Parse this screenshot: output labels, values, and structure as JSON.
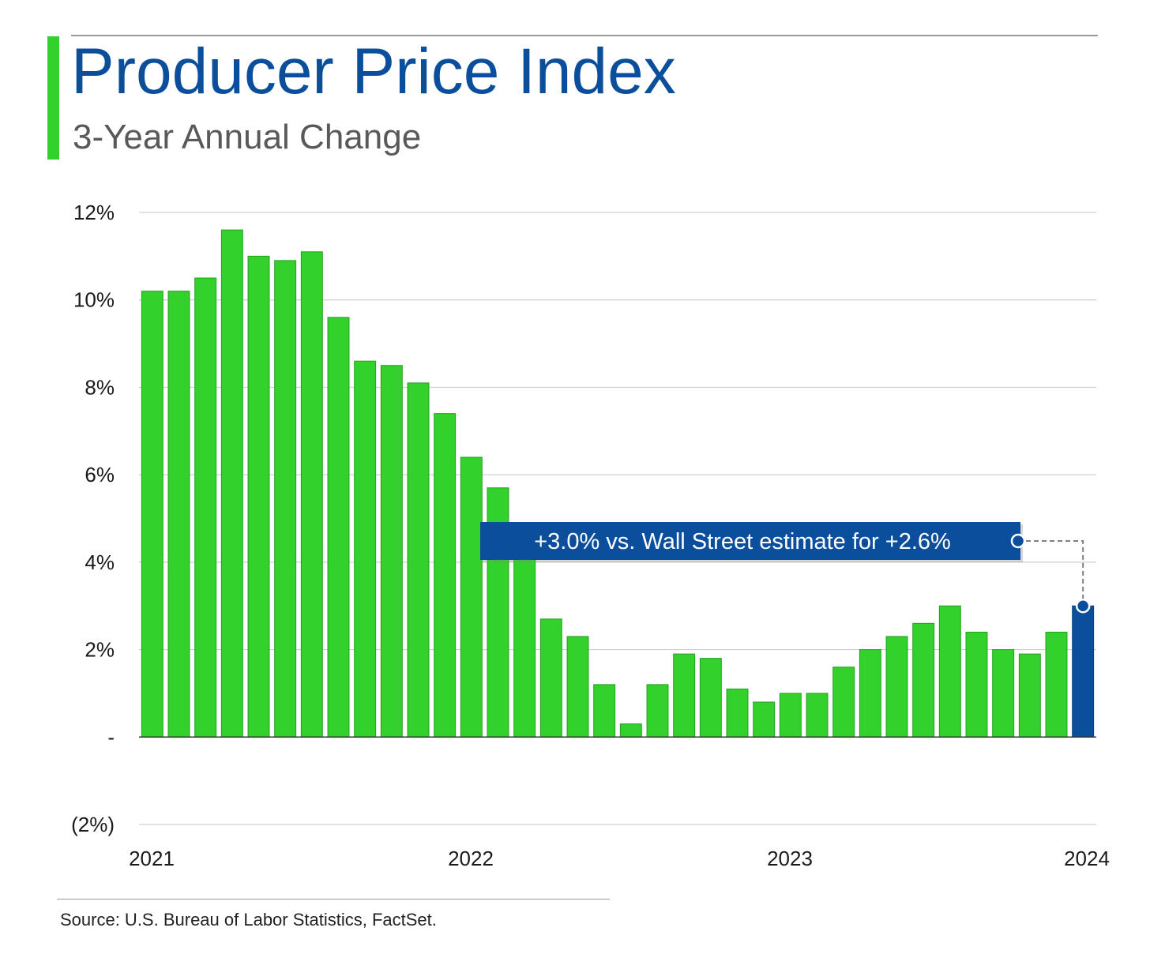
{
  "header": {
    "title": "Producer Price Index",
    "subtitle": "3-Year Annual Change"
  },
  "source": "Source: U.S. Bureau of Labor Statistics, FactSet.",
  "colors": {
    "bar": "#33d12b",
    "highlight_bar": "#0b4e9b",
    "title": "#0b4e9b",
    "accent": "#33d12b"
  },
  "chart_data": {
    "type": "bar",
    "title": "Producer Price Index",
    "subtitle": "3-Year Annual Change",
    "ylim": [
      -2,
      12
    ],
    "yticks": [
      {
        "value": 12,
        "label": "12%"
      },
      {
        "value": 10,
        "label": "10%"
      },
      {
        "value": 8,
        "label": "8%"
      },
      {
        "value": 6,
        "label": "6%"
      },
      {
        "value": 4,
        "label": "4%"
      },
      {
        "value": 2,
        "label": "2%"
      },
      {
        "value": 0,
        "label": "-"
      },
      {
        "value": -2,
        "label": "(2%)"
      }
    ],
    "xticks": [
      {
        "index": 0,
        "label": "2021"
      },
      {
        "index": 12,
        "label": "2022"
      },
      {
        "index": 24,
        "label": "2023"
      },
      {
        "index": 36,
        "label": "2024"
      }
    ],
    "grid": true,
    "values": [
      10.2,
      10.2,
      10.5,
      11.6,
      11.0,
      10.9,
      11.1,
      9.6,
      8.6,
      8.5,
      8.1,
      7.4,
      6.4,
      5.7,
      4.6,
      2.7,
      2.3,
      1.2,
      0.3,
      1.2,
      1.9,
      1.8,
      1.1,
      0.8,
      1.0,
      1.0,
      1.6,
      2.0,
      2.3,
      2.6,
      3.0,
      2.4,
      2.0,
      1.9,
      2.4,
      3.0
    ],
    "highlight_index": 35,
    "annotation": {
      "text": "+3.0% vs. Wall Street estimate for +2.6%",
      "target_index": 35
    }
  }
}
